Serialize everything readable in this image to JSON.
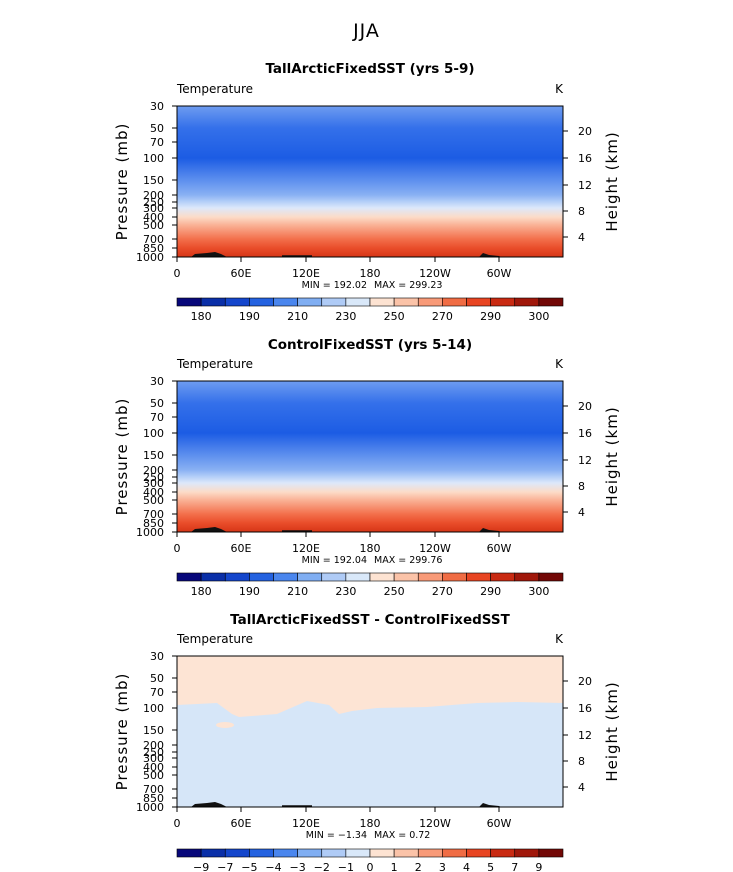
{
  "figure_title": "JJA",
  "chart_data": [
    {
      "type": "heatmap",
      "title": "TallArcticFixedSST (yrs 5-9)",
      "left_label": "Temperature",
      "right_label": "K",
      "ylabel": "Pressure (mb)",
      "ylabel_right": "Height (km)",
      "x_ticks": [
        "0",
        "60E",
        "120E",
        "180",
        "120W",
        "60W"
      ],
      "y_ticks": [
        "30",
        "50",
        "70",
        "100",
        "150",
        "200",
        "250",
        "300",
        "400",
        "500",
        "700",
        "850",
        "1000"
      ],
      "height_ticks": [
        "20",
        "16",
        "12",
        "8",
        "4"
      ],
      "min_label": "MIN = 192.02",
      "max_label": "MAX = 299.23",
      "min": 192.02,
      "max": 299.23,
      "profile": [
        {
          "p": 30,
          "value": 215
        },
        {
          "p": 50,
          "value": 205
        },
        {
          "p": 100,
          "value": 195
        },
        {
          "p": 150,
          "value": 212
        },
        {
          "p": 200,
          "value": 222
        },
        {
          "p": 250,
          "value": 232
        },
        {
          "p": 300,
          "value": 242
        },
        {
          "p": 400,
          "value": 255
        },
        {
          "p": 500,
          "value": 265
        },
        {
          "p": 700,
          "value": 280
        },
        {
          "p": 850,
          "value": 290
        },
        {
          "p": 1000,
          "value": 297
        }
      ]
    },
    {
      "type": "heatmap",
      "title": "ControlFixedSST (yrs 5-14)",
      "left_label": "Temperature",
      "right_label": "K",
      "ylabel": "Pressure (mb)",
      "ylabel_right": "Height (km)",
      "x_ticks": [
        "0",
        "60E",
        "120E",
        "180",
        "120W",
        "60W"
      ],
      "y_ticks": [
        "30",
        "50",
        "70",
        "100",
        "150",
        "200",
        "250",
        "300",
        "400",
        "500",
        "700",
        "850",
        "1000"
      ],
      "height_ticks": [
        "20",
        "16",
        "12",
        "8",
        "4"
      ],
      "min_label": "MIN = 192.04",
      "max_label": "MAX = 299.76",
      "min": 192.04,
      "max": 299.76,
      "profile": [
        {
          "p": 30,
          "value": 215
        },
        {
          "p": 50,
          "value": 205
        },
        {
          "p": 100,
          "value": 195
        },
        {
          "p": 150,
          "value": 212
        },
        {
          "p": 200,
          "value": 222
        },
        {
          "p": 250,
          "value": 232
        },
        {
          "p": 300,
          "value": 242
        },
        {
          "p": 400,
          "value": 255
        },
        {
          "p": 500,
          "value": 265
        },
        {
          "p": 700,
          "value": 280
        },
        {
          "p": 850,
          "value": 290
        },
        {
          "p": 1000,
          "value": 297
        }
      ]
    },
    {
      "type": "heatmap",
      "title": "TallArcticFixedSST - ControlFixedSST",
      "left_label": "Temperature",
      "right_label": "K",
      "ylabel": "Pressure (mb)",
      "ylabel_right": "Height (km)",
      "x_ticks": [
        "0",
        "60E",
        "120E",
        "180",
        "120W",
        "60W"
      ],
      "y_ticks": [
        "30",
        "50",
        "70",
        "100",
        "150",
        "200",
        "250",
        "300",
        "400",
        "500",
        "700",
        "850",
        "1000"
      ],
      "height_ticks": [
        "20",
        "16",
        "12",
        "8",
        "4"
      ],
      "min_label": "MIN = −1.34",
      "max_label": "MAX = 0.72",
      "min": -1.34,
      "max": 0.72,
      "regions": [
        {
          "range": "0 to 1",
          "color": "#fde4d4",
          "where": "above ~100 mb"
        },
        {
          "range": "-1 to 0",
          "color": "#d6e6f8",
          "where": "below ~100 mb"
        }
      ]
    }
  ],
  "colorbars": [
    {
      "colors": [
        "#08087a",
        "#0a2fa8",
        "#1446cc",
        "#2462e0",
        "#4a86ee",
        "#80aef2",
        "#afcbf6",
        "#d9e8f9",
        "#fde3d2",
        "#fbc3a8",
        "#f89a78",
        "#f06c44",
        "#e84522",
        "#c92a12",
        "#a0170a",
        "#720806"
      ],
      "labels": [
        "180",
        "190",
        "210",
        "230",
        "250",
        "270",
        "290",
        "300"
      ]
    },
    {
      "colors": [
        "#08087a",
        "#0a2fa8",
        "#1446cc",
        "#2462e0",
        "#4a86ee",
        "#80aef2",
        "#afcbf6",
        "#d9e8f9",
        "#fde3d2",
        "#fbc3a8",
        "#f89a78",
        "#f06c44",
        "#e84522",
        "#c92a12",
        "#a0170a",
        "#720806"
      ],
      "labels": [
        "180",
        "190",
        "210",
        "230",
        "250",
        "270",
        "290",
        "300"
      ]
    },
    {
      "colors": [
        "#08087a",
        "#0a2fa8",
        "#1446cc",
        "#2462e0",
        "#4a86ee",
        "#80aef2",
        "#afcbf6",
        "#d9e8f9",
        "#fde3d2",
        "#fbc3a8",
        "#f89a78",
        "#f06c44",
        "#e84522",
        "#c92a12",
        "#a0170a",
        "#720806"
      ],
      "labels": [
        "−9",
        "−7",
        "−5",
        "−4",
        "−3",
        "−2",
        "−1",
        "0",
        "1",
        "2",
        "3",
        "4",
        "5",
        "7",
        "9"
      ]
    }
  ]
}
